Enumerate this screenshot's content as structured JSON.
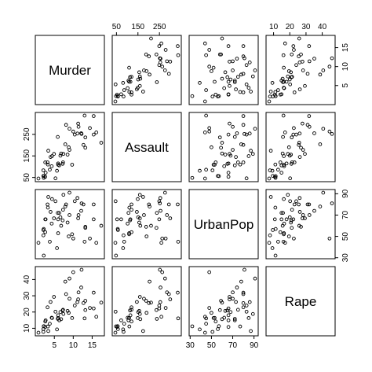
{
  "chart_data": {
    "type": "scatter",
    "variables": [
      "Murder",
      "Assault",
      "UrbanPop",
      "Rape"
    ],
    "ranges": {
      "Murder": [
        0.8,
        17.4
      ],
      "Assault": [
        45,
        337
      ],
      "UrbanPop": [
        32,
        91
      ],
      "Rape": [
        7.3,
        46.0
      ]
    },
    "ticks": {
      "Murder": [
        5,
        10,
        15
      ],
      "Assault": [
        50,
        150,
        250
      ],
      "UrbanPop": [
        30,
        50,
        70,
        90
      ],
      "Rape": [
        10,
        20,
        30,
        40
      ]
    },
    "tick_labels": {
      "Murder": [
        "5",
        "10",
        "15"
      ],
      "Assault": [
        "50",
        "150",
        "250"
      ],
      "UrbanPop": [
        "30",
        "50",
        "70",
        "90"
      ],
      "Rape": [
        "10",
        "20",
        "30",
        "40"
      ]
    },
    "observations": [
      [
        13.2,
        236,
        58,
        21.2
      ],
      [
        10.0,
        263,
        48,
        44.5
      ],
      [
        8.1,
        294,
        80,
        31.0
      ],
      [
        8.8,
        190,
        50,
        19.5
      ],
      [
        9.0,
        276,
        91,
        40.6
      ],
      [
        7.9,
        204,
        78,
        38.7
      ],
      [
        3.3,
        110,
        77,
        11.1
      ],
      [
        5.9,
        238,
        72,
        15.8
      ],
      [
        15.4,
        335,
        80,
        31.9
      ],
      [
        17.4,
        211,
        60,
        25.8
      ],
      [
        5.3,
        46,
        83,
        20.2
      ],
      [
        2.6,
        120,
        54,
        14.2
      ],
      [
        10.4,
        249,
        83,
        24.0
      ],
      [
        7.2,
        113,
        65,
        21.0
      ],
      [
        2.2,
        56,
        57,
        11.3
      ],
      [
        6.0,
        115,
        66,
        18.0
      ],
      [
        9.7,
        109,
        52,
        16.3
      ],
      [
        15.4,
        249,
        66,
        22.2
      ],
      [
        2.1,
        83,
        51,
        7.8
      ],
      [
        11.3,
        300,
        67,
        27.8
      ],
      [
        4.4,
        149,
        85,
        16.3
      ],
      [
        12.1,
        255,
        74,
        35.1
      ],
      [
        2.7,
        72,
        66,
        14.9
      ],
      [
        16.1,
        259,
        44,
        17.1
      ],
      [
        9.0,
        178,
        70,
        28.2
      ],
      [
        6.0,
        109,
        53,
        16.4
      ],
      [
        4.3,
        102,
        62,
        16.5
      ],
      [
        12.2,
        252,
        81,
        46.0
      ],
      [
        2.1,
        57,
        56,
        9.5
      ],
      [
        7.4,
        159,
        89,
        18.8
      ],
      [
        11.4,
        285,
        70,
        32.1
      ],
      [
        11.1,
        254,
        86,
        26.1
      ],
      [
        13.0,
        337,
        45,
        16.1
      ],
      [
        0.8,
        45,
        44,
        7.3
      ],
      [
        7.3,
        120,
        75,
        21.4
      ],
      [
        6.6,
        151,
        68,
        20.0
      ],
      [
        4.9,
        159,
        67,
        29.3
      ],
      [
        6.3,
        106,
        72,
        14.9
      ],
      [
        3.4,
        174,
        87,
        8.3
      ],
      [
        14.4,
        279,
        48,
        22.5
      ],
      [
        3.8,
        86,
        45,
        12.8
      ],
      [
        13.2,
        188,
        59,
        26.9
      ],
      [
        12.7,
        201,
        80,
        25.5
      ],
      [
        3.2,
        120,
        80,
        22.9
      ],
      [
        2.2,
        48,
        32,
        11.2
      ],
      [
        8.5,
        156,
        63,
        20.7
      ],
      [
        4.0,
        145,
        73,
        26.2
      ],
      [
        5.7,
        81,
        39,
        9.3
      ],
      [
        2.6,
        53,
        66,
        10.8
      ],
      [
        6.8,
        161,
        60,
        15.6
      ]
    ]
  }
}
